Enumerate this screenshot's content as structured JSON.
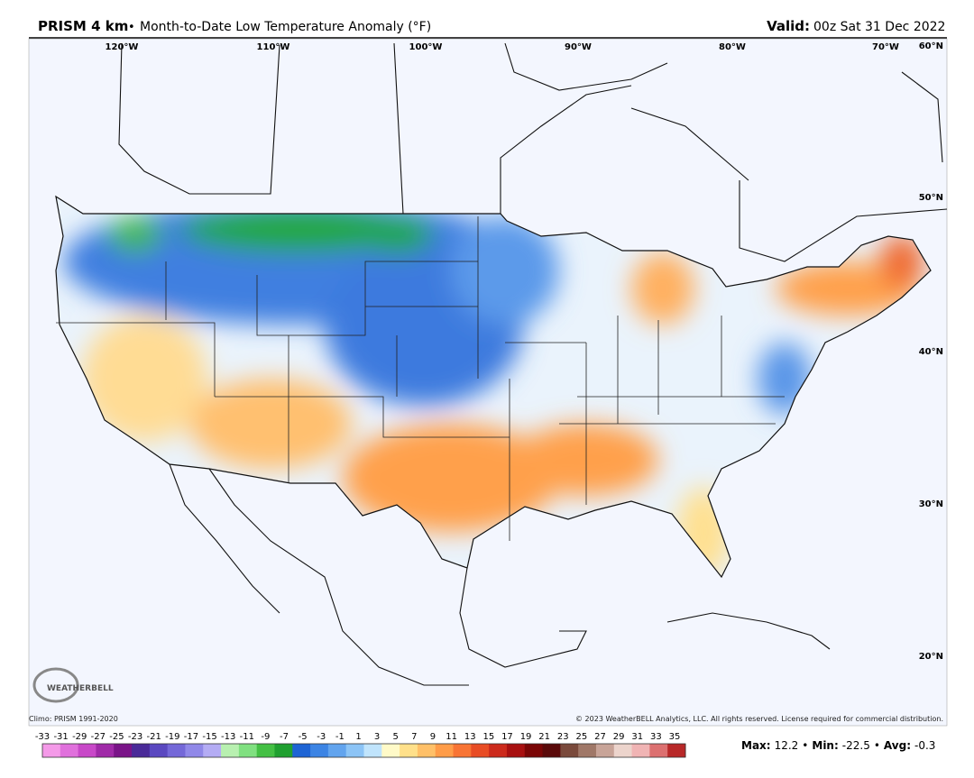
{
  "header": {
    "product": "PRISM 4 km",
    "separator": "•",
    "title": "Month-to-Date Low Temperature Anomaly (°F)",
    "valid_label": "Valid:",
    "valid_time": "00z Sat 31 Dec 2022"
  },
  "map": {
    "lon_labels": [
      "120°W",
      "110°W",
      "100°W",
      "90°W",
      "80°W",
      "70°W"
    ],
    "lat_labels": [
      "60°N",
      "50°N",
      "40°N",
      "30°N",
      "20°N"
    ]
  },
  "footer": {
    "logo": "WEATHERBELL",
    "climo": "Climo: PRISM 1991-2020",
    "copyright": "© 2023 WeatherBELL Analytics, LLC. All rights reserved. License required for commercial distribution."
  },
  "colorbar": {
    "labels": [
      -33,
      -31,
      -29,
      -27,
      -25,
      -23,
      -21,
      -19,
      -17,
      -15,
      -13,
      -11,
      -9,
      -7,
      -5,
      -3,
      -1,
      1,
      3,
      5,
      7,
      9,
      11,
      13,
      15,
      17,
      19,
      21,
      23,
      25,
      27,
      29,
      31,
      33,
      35
    ],
    "colors": [
      "#f49ae8",
      "#e070dc",
      "#c848c8",
      "#a02aa8",
      "#7a1488",
      "#4a2a98",
      "#5a48c0",
      "#7468d8",
      "#9088e8",
      "#b4acf4",
      "#b8f0b0",
      "#80e080",
      "#44c044",
      "#20a030",
      "#1e64d4",
      "#3c84e4",
      "#62a4ee",
      "#8cc4f6",
      "#c0e4fc",
      "#fffac8",
      "#ffe08a",
      "#ffc068",
      "#ff9c48",
      "#f87434",
      "#e84c24",
      "#cc2a1c",
      "#a81010",
      "#7a0606",
      "#5a0a0a",
      "#7a4a3c",
      "#a07868",
      "#c8a498",
      "#ecd4cc",
      "#f0b4b4",
      "#dc7070",
      "#b82828"
    ]
  },
  "stats": {
    "max_label": "Max:",
    "max": 12.2,
    "min_label": "Min:",
    "min": -22.5,
    "avg_label": "Avg:",
    "avg": -0.3,
    "separator": "•"
  }
}
